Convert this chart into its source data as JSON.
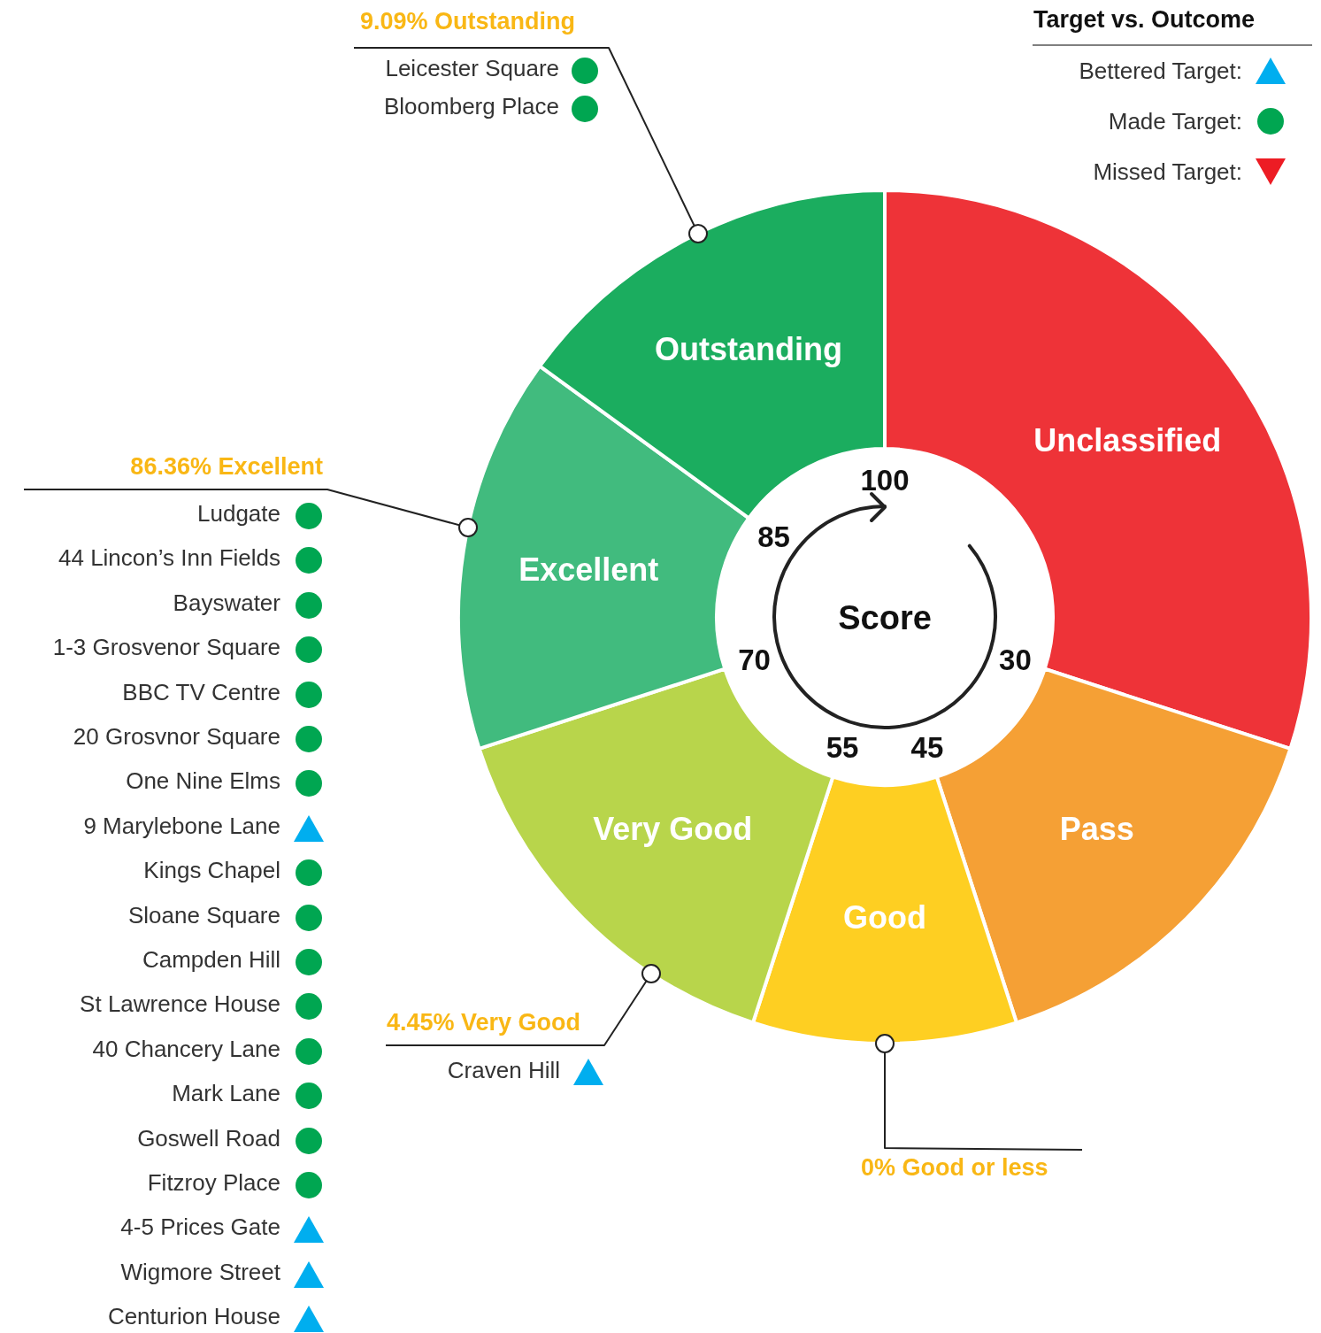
{
  "chart_data": {
    "type": "donut",
    "categories": [
      "Unclassified",
      "Pass",
      "Good",
      "Very Good",
      "Excellent",
      "Outstanding"
    ],
    "values": [
      30,
      15,
      10,
      15,
      15,
      15
    ],
    "colors": [
      "#ee3338",
      "#f5a035",
      "#fecf22",
      "#b8d54b",
      "#41bb7e",
      "#1bad5f"
    ],
    "legend": false,
    "annotations": [
      "Target vs. Outcome",
      "Bettered Target:",
      "Made Target:",
      "Missed Target:",
      "Score",
      "100",
      "85",
      "70",
      "55",
      "45",
      "30",
      "9.09% Outstanding",
      "Leicester Square",
      "Bloomberg Place",
      "86.36% Excellent",
      "Ludgate",
      "44 Lincon’s Inn Fields",
      "Bayswater",
      "1-3 Grosvenor Square",
      "BBC TV Centre",
      "20 Grosvnor Square",
      "One Nine Elms",
      "9 Marylebone Lane",
      "Kings Chapel",
      "Sloane Square",
      "Campden Hill",
      "St Lawrence House",
      "40 Chancery Lane",
      "Mark Lane",
      "Goswell Road",
      "Fitzroy Place",
      "4-5 Prices Gate",
      "Wigmore Street",
      "Centurion House",
      "4.45% Very Good",
      "Craven Hill",
      "0% Good or less"
    ]
  }
}
